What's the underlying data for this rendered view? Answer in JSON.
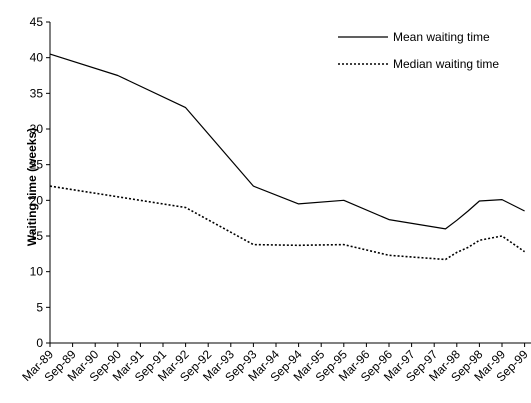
{
  "chart_data": {
    "type": "line",
    "title": "",
    "xlabel": "",
    "ylabel": "Waiting time (weeks)",
    "ylim": [
      0,
      45
    ],
    "yticks": [
      0,
      5,
      10,
      15,
      20,
      25,
      30,
      35,
      40,
      45
    ],
    "grid": false,
    "legend_position": "top-right",
    "categories": [
      "Mar-89",
      "Sep-89",
      "Mar-90",
      "Sep-90",
      "Mar-91",
      "Sep-91",
      "Mar-92",
      "Sep-92",
      "Mar-93",
      "Sep-93",
      "Mar-94",
      "Sep-94",
      "Mar-95",
      "Sep-95",
      "Mar-96",
      "Sep-96",
      "Mar-97",
      "Sep-97",
      "Mar-98",
      "Sep-98",
      "Mar-99",
      "Sep-99"
    ],
    "series": [
      {
        "name": "Mean waiting time",
        "style": "solid",
        "color": "#000000",
        "x": [
          0,
          3,
          6,
          9,
          11,
          13,
          15,
          17.5,
          18,
          18.5,
          19,
          20,
          21
        ],
        "values": [
          40.5,
          37.5,
          33,
          22,
          19.5,
          20,
          17.3,
          16,
          17.2,
          18.5,
          19.9,
          20.1,
          18.5
        ]
      },
      {
        "name": "Median waiting time",
        "style": "dotted",
        "color": "#000000",
        "x": [
          0,
          3,
          6,
          9,
          11,
          13,
          15,
          17.5,
          18,
          18.5,
          19,
          20,
          21
        ],
        "values": [
          22,
          20.5,
          19,
          13.8,
          13.7,
          13.8,
          12.3,
          11.7,
          12.7,
          13.4,
          14.4,
          15,
          12.8
        ]
      }
    ]
  }
}
